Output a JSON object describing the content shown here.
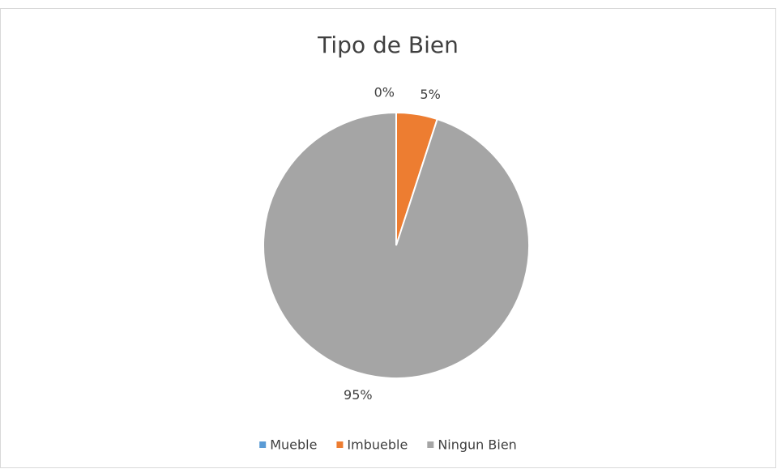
{
  "chart_data": {
    "type": "pie",
    "title": "Tipo de Bien",
    "categories": [
      "Mueble",
      "Imbueble",
      "Ningun Bien"
    ],
    "values": [
      0,
      5,
      95
    ],
    "value_labels": [
      "0%",
      "5%",
      "95%"
    ],
    "colors": [
      "#5b9bd5",
      "#ed7d31",
      "#a5a5a5"
    ],
    "legend": "bottom"
  }
}
